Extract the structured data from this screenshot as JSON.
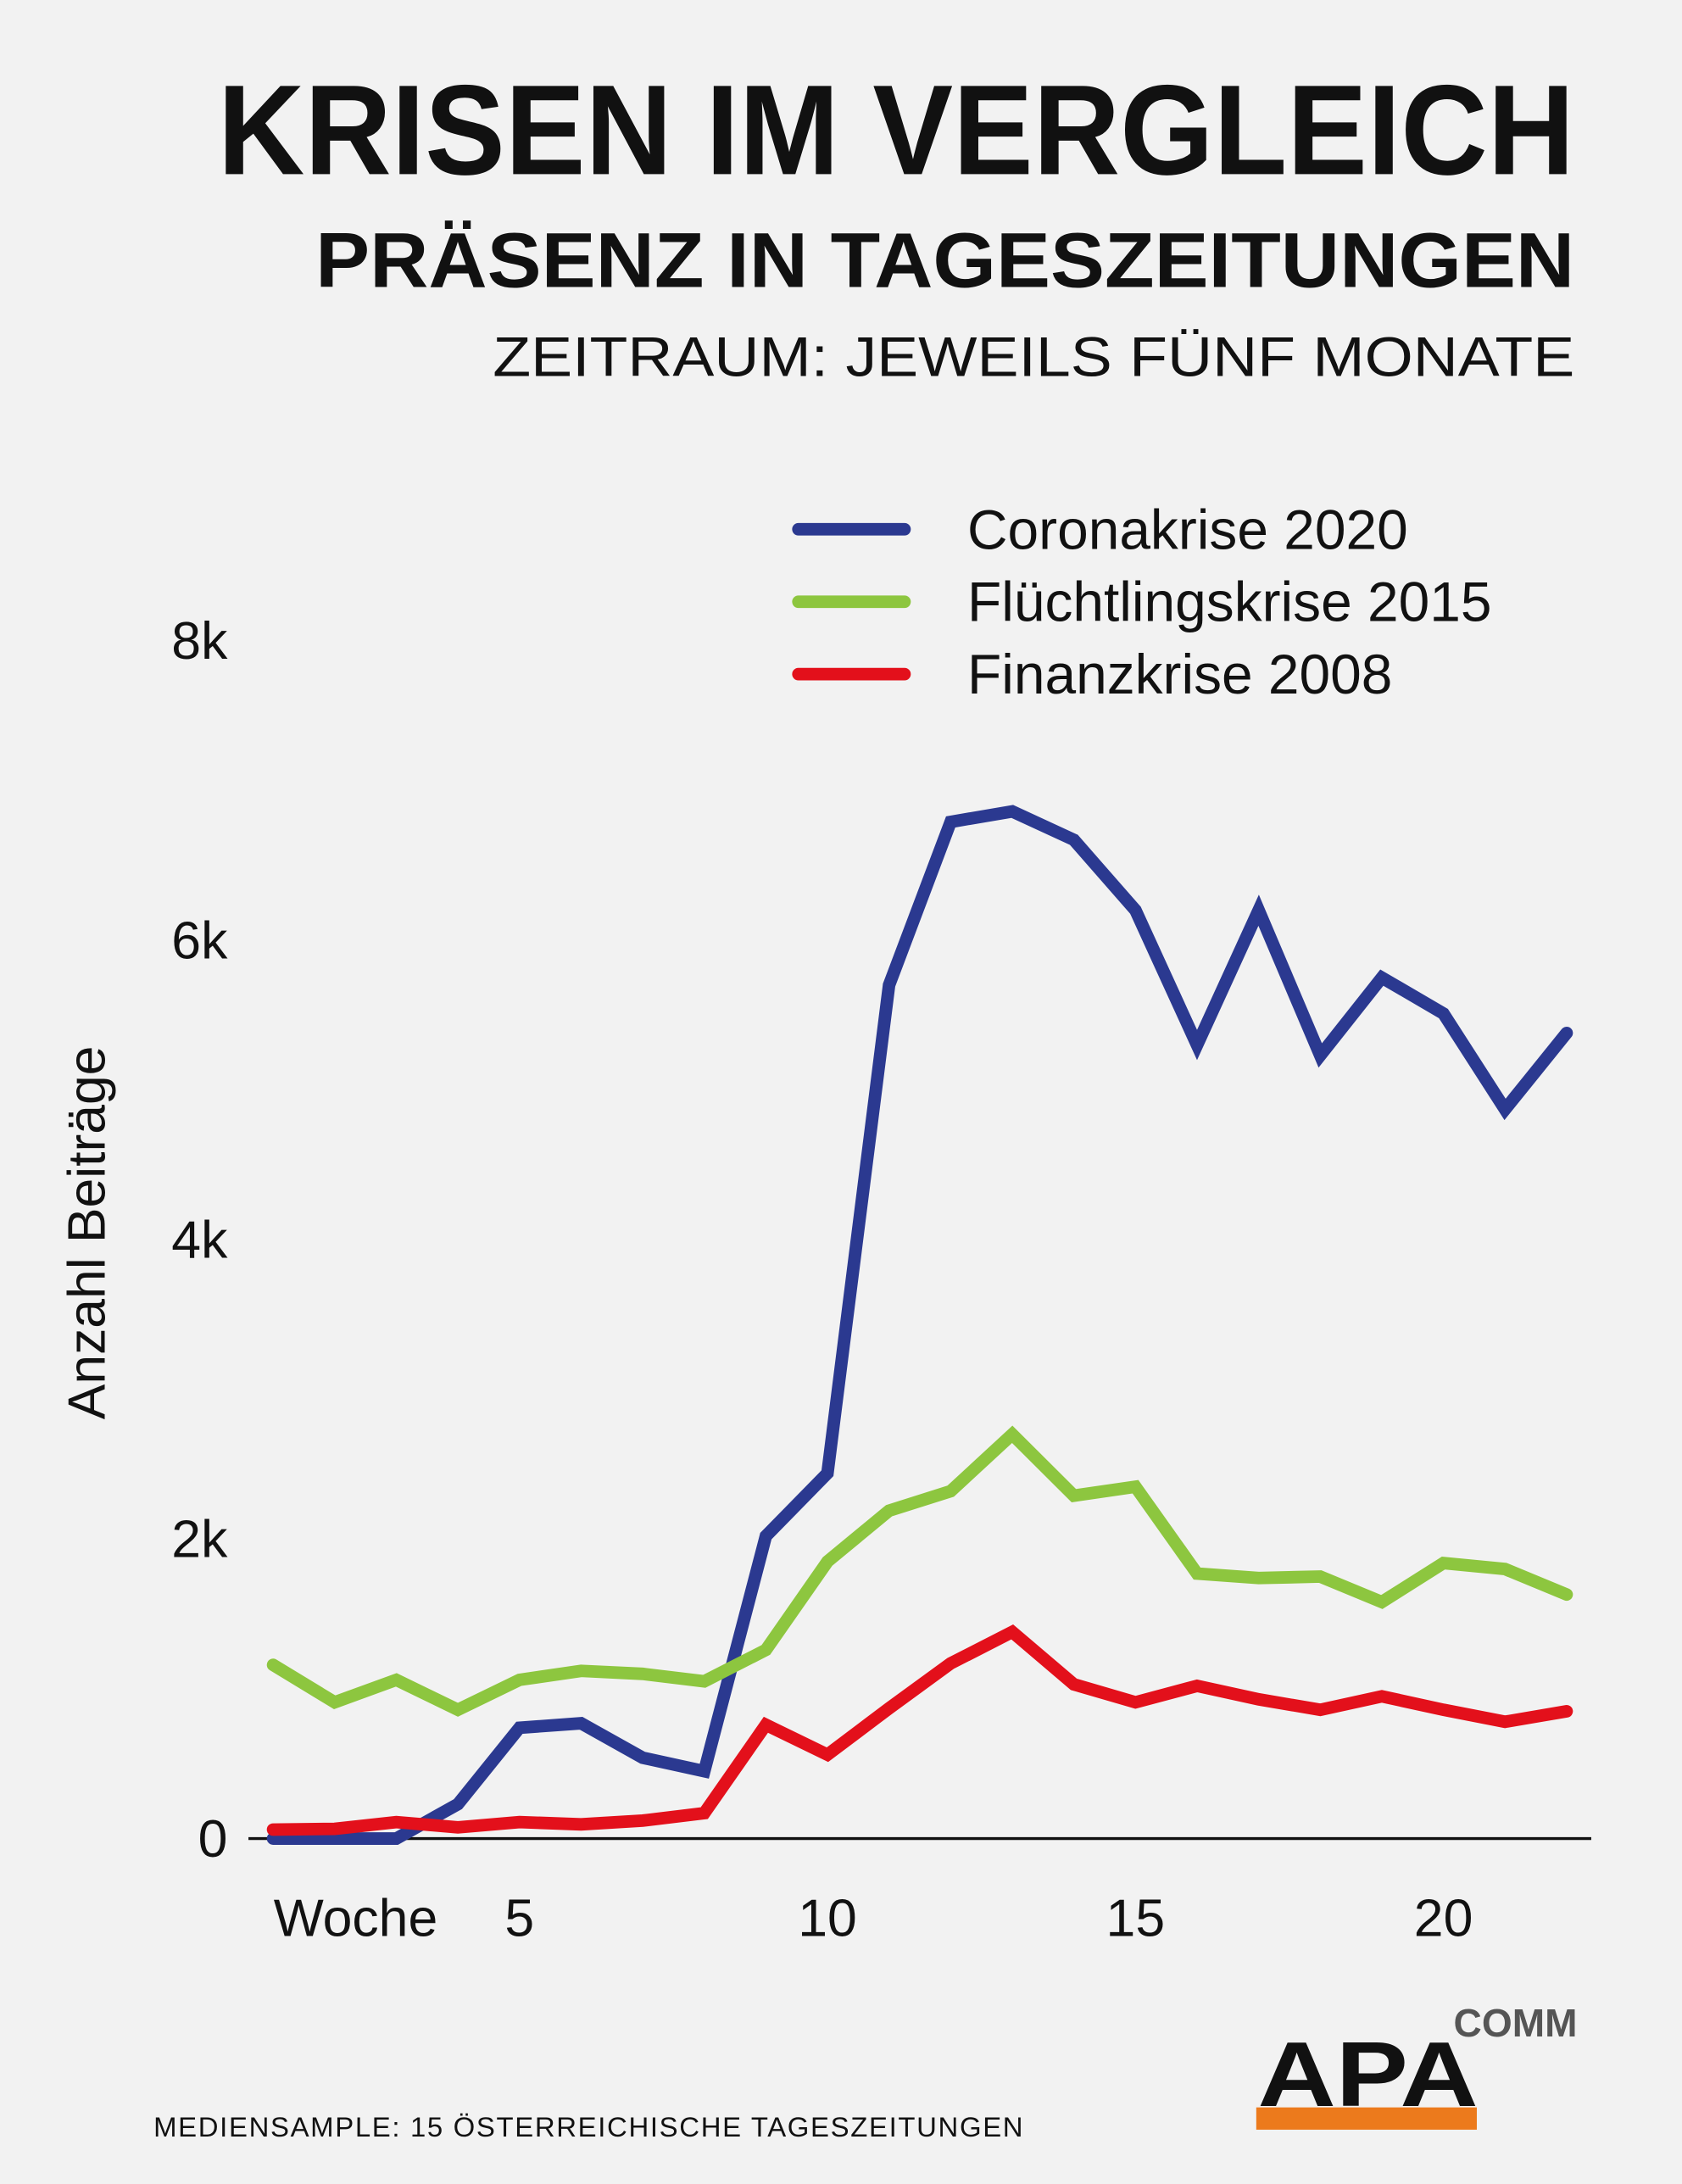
{
  "chart_data": {
    "type": "line",
    "title": "KRISEN IM VERGLEICH",
    "subtitle": "PRÄSENZ IN TAGESZEITUNGEN",
    "subtitle2": "ZEITRAUM: JEWEILS FÜNF MONATE",
    "y_label": "Anzahl Beiträge",
    "x_label": "Woche",
    "x": [
      1,
      2,
      3,
      4,
      5,
      6,
      7,
      8,
      9,
      10,
      11,
      12,
      13,
      14,
      15,
      16,
      17,
      18,
      19,
      20,
      21,
      22
    ],
    "series": [
      {
        "name": "Coronakrise 2020",
        "color": "#2b3990",
        "values": [
          0,
          0,
          0,
          230,
          740,
          770,
          540,
          450,
          2020,
          2440,
          5700,
          6790,
          6860,
          6670,
          6200,
          5300,
          6200,
          5230,
          5750,
          5510,
          4870,
          5380
        ]
      },
      {
        "name": "Flüchtlingskrise 2015",
        "color": "#8dc63f",
        "values": [
          1160,
          910,
          1060,
          860,
          1060,
          1120,
          1100,
          1050,
          1260,
          1850,
          2190,
          2320,
          2700,
          2290,
          2350,
          1770,
          1740,
          1750,
          1580,
          1840,
          1800,
          1630
        ]
      },
      {
        "name": "Finanzkrise 2008",
        "color": "#e3101b",
        "values": [
          60,
          65,
          110,
          75,
          110,
          95,
          120,
          170,
          760,
          560,
          870,
          1170,
          1380,
          1030,
          910,
          1020,
          930,
          860,
          950,
          860,
          780,
          850
        ]
      }
    ],
    "xlim": [
      0.6,
      22.4
    ],
    "xticks": [
      5,
      10,
      15,
      20
    ],
    "ylim": [
      0,
      8000
    ],
    "yticks": [
      0,
      {
        "value": 2000,
        "label": "2k"
      },
      {
        "value": 4000,
        "label": "4k"
      },
      {
        "value": 6000,
        "label": "6k"
      },
      {
        "value": 8000,
        "label": "8k"
      }
    ],
    "grid": false,
    "legend": "top-right"
  },
  "footer": {
    "note": "MEDIENSAMPLE: 15 ÖSTERREICHISCHE TAGESZEITUNGEN",
    "logo": "APA",
    "logo_sub": "COMM"
  }
}
